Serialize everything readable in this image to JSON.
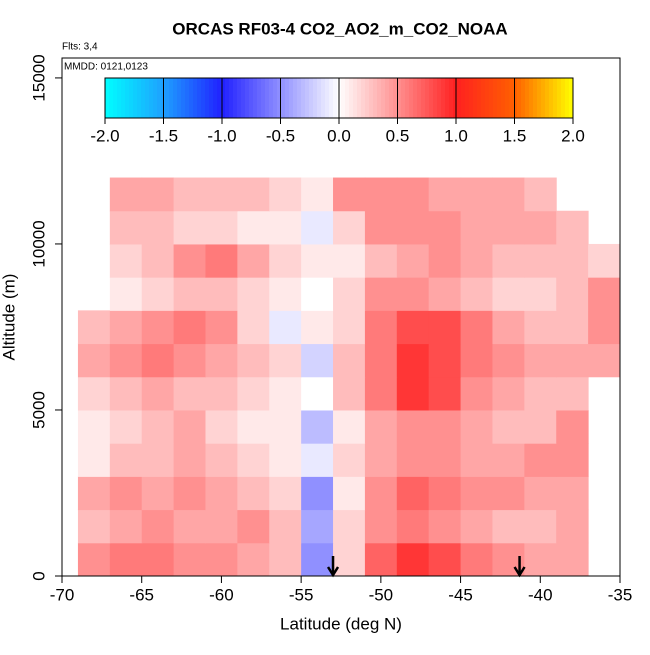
{
  "chart_data": {
    "type": "heatmap",
    "title": "ORCAS RF03-4 CO2_AO2_m_CO2_NOAA",
    "annotations": [
      "Flts: 3,4",
      "MMDD: 0121,0123"
    ],
    "x_label": "Latitude (deg N)",
    "y_label": "Altitude (m)",
    "xlim": [
      -70,
      -35
    ],
    "xticks": [
      -70,
      -65,
      -60,
      -55,
      -50,
      -45,
      -40,
      -35
    ],
    "ylim": [
      0,
      15600
    ],
    "yticks": [
      0,
      5000,
      10000,
      15000
    ],
    "x_edges": [
      -69,
      -67,
      -65,
      -63,
      -61,
      -59,
      -57,
      -55,
      -53,
      -51,
      -49,
      -47,
      -45,
      -43,
      -41,
      -39,
      -37,
      -35
    ],
    "y_edges": [
      0,
      1000,
      2000,
      3000,
      4000,
      5000,
      6000,
      7000,
      8000,
      9000,
      10000,
      11000,
      12000
    ],
    "z": [
      [
        0.5,
        0.6,
        0.6,
        0.5,
        0.5,
        0.4,
        0.3,
        -0.5,
        0.2,
        0.7,
        0.9,
        0.8,
        0.6,
        0.5,
        0.4,
        0.4,
        null
      ],
      [
        0.3,
        0.4,
        0.5,
        0.4,
        0.4,
        0.5,
        0.3,
        -0.4,
        0.2,
        0.5,
        0.6,
        0.5,
        0.4,
        0.3,
        0.3,
        0.4,
        null
      ],
      [
        0.4,
        0.5,
        0.4,
        0.5,
        0.4,
        0.3,
        0.2,
        -0.5,
        0.1,
        0.5,
        0.7,
        0.6,
        0.5,
        0.5,
        0.4,
        0.4,
        null
      ],
      [
        0.1,
        0.3,
        0.3,
        0.4,
        0.3,
        0.2,
        0.1,
        -0.1,
        0.2,
        0.4,
        0.5,
        0.5,
        0.4,
        0.4,
        0.5,
        0.5,
        null
      ],
      [
        0.1,
        0.2,
        0.3,
        0.4,
        0.2,
        0.1,
        0.1,
        -0.3,
        0.1,
        0.4,
        0.5,
        0.5,
        0.4,
        0.3,
        0.3,
        0.5,
        null
      ],
      [
        0.2,
        0.3,
        0.4,
        0.3,
        0.3,
        0.2,
        0.1,
        0,
        0.3,
        0.6,
        0.9,
        0.8,
        0.5,
        0.4,
        0.3,
        0.3,
        null
      ],
      [
        0.4,
        0.5,
        0.6,
        0.5,
        0.4,
        0.3,
        0.2,
        -0.2,
        0.3,
        0.6,
        0.9,
        0.8,
        0.6,
        0.5,
        0.4,
        0.4,
        0.4
      ],
      [
        0.3,
        0.4,
        0.5,
        0.6,
        0.5,
        0.2,
        -0.1,
        0.1,
        0.2,
        0.6,
        0.8,
        0.8,
        0.6,
        0.4,
        0.3,
        0.3,
        0.5
      ],
      [
        null,
        0.1,
        0.2,
        0.3,
        0.3,
        0.2,
        0.1,
        0,
        0.2,
        0.5,
        0.5,
        0.4,
        0.3,
        0.2,
        0.2,
        0.3,
        0.5
      ],
      [
        null,
        0.2,
        0.3,
        0.5,
        0.6,
        0.4,
        0.2,
        0.1,
        0.1,
        0.3,
        0.4,
        0.5,
        0.4,
        0.3,
        0.3,
        0.3,
        0.2
      ],
      [
        null,
        0.3,
        0.3,
        0.2,
        0.2,
        0.1,
        0.1,
        -0.1,
        0.2,
        0.5,
        0.5,
        0.5,
        0.4,
        0.4,
        0.4,
        0.3,
        null
      ],
      [
        null,
        0.4,
        0.4,
        0.3,
        0.3,
        0.3,
        0.2,
        0.1,
        0.5,
        0.5,
        0.5,
        0.4,
        0.4,
        0.4,
        0.3,
        null,
        null
      ]
    ],
    "zlim": [
      -2,
      2
    ],
    "zticks": [
      {
        "value": -2,
        "label": "-2.0"
      },
      {
        "value": -1.5,
        "label": "-1.5"
      },
      {
        "value": -1,
        "label": "-1.0"
      },
      {
        "value": -0.5,
        "label": "-0.5"
      },
      {
        "value": 0,
        "label": "0.0"
      },
      {
        "value": 0.5,
        "label": "0.5"
      },
      {
        "value": 1,
        "label": "1.0"
      },
      {
        "value": 1.5,
        "label": "1.5"
      },
      {
        "value": 2,
        "label": "2.0"
      }
    ],
    "colors": [
      "#00ffff",
      "#1ea0ff",
      "#2020ff",
      "#9090ff",
      "#ffffff",
      "#ff9090",
      "#ff2020",
      "#ff6000",
      "#ffff00"
    ],
    "arrows_x": [
      -53,
      -41.3
    ]
  }
}
